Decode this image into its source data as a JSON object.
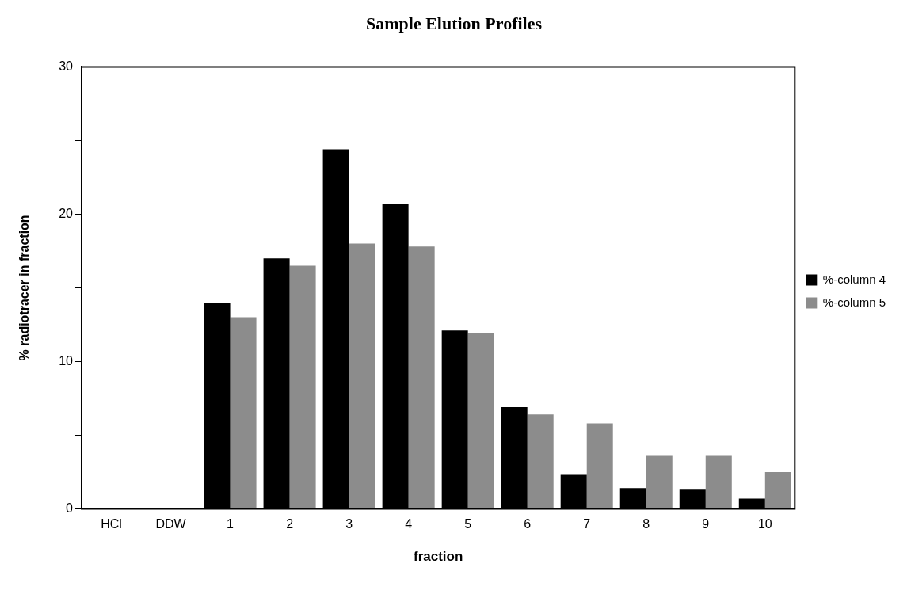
{
  "chart_data": {
    "type": "bar",
    "title": "Sample Elution Profiles",
    "xlabel": "fraction",
    "ylabel": "% radiotracer in fraction",
    "categories": [
      "HCl",
      "DDW",
      "1",
      "2",
      "3",
      "4",
      "5",
      "6",
      "7",
      "8",
      "9",
      "10"
    ],
    "series": [
      {
        "name": "%-column 4",
        "color": "#000000",
        "values": [
          null,
          0,
          14.0,
          17.0,
          24.4,
          20.7,
          12.1,
          6.9,
          2.3,
          1.4,
          1.3,
          0.7
        ]
      },
      {
        "name": "%-column 5",
        "color": "#8c8c8c",
        "values": [
          null,
          0,
          13.0,
          16.5,
          18.0,
          17.8,
          11.9,
          6.4,
          5.8,
          3.6,
          3.6,
          2.5
        ]
      }
    ],
    "ylim": [
      0,
      30
    ],
    "yticks": [
      0,
      {
        "value": 5,
        "label": null
      },
      10,
      {
        "value": 15,
        "label": null
      },
      20,
      {
        "value": 25,
        "label": null
      },
      30
    ],
    "grid": false,
    "legend": "right"
  }
}
